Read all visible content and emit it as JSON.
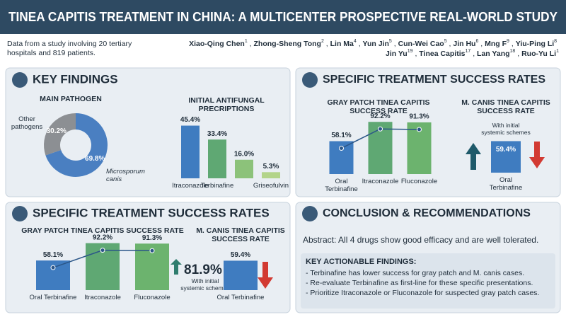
{
  "header": {
    "title": "TINEA CAPITIS TREATMENT IN CHINA: A MULTICENTER PROSPECTIVE REAL-WORLD STUDY",
    "intro": "Data from a study involving 20 tertiary hospitals and 819 patients.",
    "authors": [
      {
        "name": "Xiao-Qing Chen",
        "sup": "1"
      },
      {
        "name": "Zhong-Sheng Tong",
        "sup": "2"
      },
      {
        "name": "Lin Ma",
        "sup": "4"
      },
      {
        "name": "Yun Jin",
        "sup": "5"
      },
      {
        "name": "Cun-Wei Cao",
        "sup": "5"
      },
      {
        "name": "Jin Hu",
        "sup": "6"
      },
      {
        "name": "Mng F",
        "sup": "9"
      },
      {
        "name": "Yiu-Ping Li",
        "sup": "8"
      },
      {
        "name": "Jin Yu",
        "sup": "19"
      },
      {
        "name": "Tinea Capitis",
        "sup": "17"
      },
      {
        "name": "Lan Yang",
        "sup": "18"
      },
      {
        "name": "Ruo-Yu Li",
        "sup": "1"
      }
    ]
  },
  "key_findings": {
    "title": "KEY FINDINGS",
    "pathogen": {
      "type": "pie",
      "title": "MAIN PATHOGEN",
      "labels": [
        "Other pathogens",
        "Microsporum canis"
      ],
      "values": [
        30.2,
        69.8
      ],
      "value_labels": [
        "30.2%",
        "69.8%"
      ],
      "colors": [
        "#8c8f93",
        "#4a7fc1"
      ]
    },
    "prescriptions": {
      "type": "bar",
      "title": "INITIAL ANTIFUNGAL PRECRIPTIONS",
      "categories": [
        "Itraconazole",
        "Terbinafine",
        null,
        "Griseofulvin"
      ],
      "values": [
        45.4,
        33.4,
        16.0,
        5.3
      ],
      "value_labels": [
        "45.4%",
        "33.4%",
        "16.0%",
        "5.3%"
      ],
      "colors": [
        "#3f7cc0",
        "#5fa873",
        "#8cc27a",
        "#b3d48a"
      ],
      "ylim": [
        0,
        50
      ]
    }
  },
  "success_top": {
    "title": "SPECIFIC TREATMENT SUCCESS RATES",
    "gray_patch": {
      "type": "bar",
      "title": "GRAY PATCH TINEA CAPITIS SUCCESS RATE",
      "categories": [
        "Oral Terbinafine",
        "Itraconazole",
        "Fluconazole"
      ],
      "values": [
        58.1,
        92.2,
        91.3
      ],
      "value_labels": [
        "58.1%",
        "92.2%",
        "91.3%"
      ],
      "colors": [
        "#3f7cc0",
        "#5fa873",
        "#6cb36e"
      ],
      "ylim": [
        0,
        100
      ],
      "line": true
    },
    "m_canis": {
      "type": "bar",
      "title": "M. CANIS TINEA CAPITIS SUCCESS RATE",
      "note": "With initial systemic schemes",
      "categories": [
        "Oral Terbinafine"
      ],
      "values": [
        59.4
      ],
      "value_labels": [
        "59.4%"
      ],
      "colors": [
        "#3f7cc0"
      ],
      "ylim": [
        0,
        100
      ]
    }
  },
  "success_bottom": {
    "title": "SPECIFIC TREATMENT SUCCESS RATES",
    "gray_patch": {
      "type": "bar",
      "title": "GRAY PATCH TINEA CAPITIS SUCCESS RATE",
      "categories": [
        "Oral Terbinafine",
        "Itraconazole",
        "Fluconazole"
      ],
      "values": [
        58.1,
        92.2,
        91.3
      ],
      "value_labels": [
        "58.1%",
        "92.2%",
        "91.3%"
      ],
      "colors": [
        "#3f7cc0",
        "#5fa873",
        "#6cb36e"
      ],
      "ylim": [
        0,
        100
      ],
      "line": true
    },
    "highlight": "81.9%",
    "highlight_note": "With initial systemic schemes",
    "m_canis": {
      "type": "bar",
      "title": "M. CANIS TINEA CAPITIS SUCCESS RATE",
      "categories": [
        "Oral Terbinafine"
      ],
      "values": [
        59.4
      ],
      "value_labels": [
        "59.4%"
      ],
      "colors": [
        "#3f7cc0"
      ],
      "ylim": [
        0,
        100
      ]
    }
  },
  "conclusion": {
    "title": "CONCLUSION & RECOMMENDATIONS",
    "abstract": "Abstract: All 4 drugs show good efficacy and are well tolerated.",
    "findings_title": "KEY ACTIONABLE FINDINGS:",
    "findings": [
      "- Terbinafine has lower success for gray patch and M. canis cases.",
      "- Re-evaluate Terbinafine as first-line for these specific presentations.",
      "- Prioritize Itraconazole or Fluconazole for suspected gray patch cases."
    ]
  }
}
